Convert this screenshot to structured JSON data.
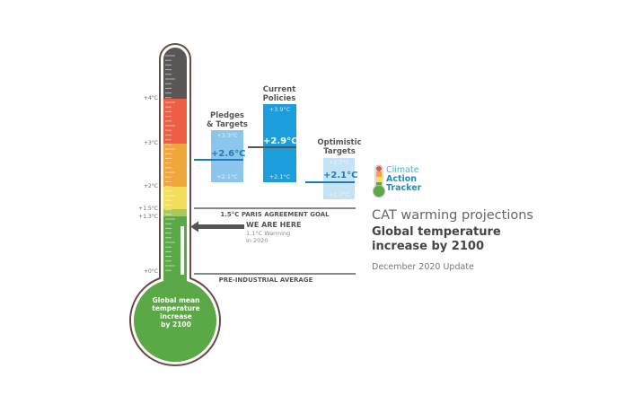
{
  "thermometer": {
    "ticks": [
      {
        "label": "+4°C",
        "value": 4.0
      },
      {
        "label": "+3°C",
        "value": 3.0
      },
      {
        "label": "+2°C",
        "value": 2.0
      },
      {
        "label": "+1.5°C",
        "value": 1.5
      },
      {
        "label": "+1.3°C",
        "value": 1.3
      },
      {
        "label": "+0°C",
        "value": 0.0
      }
    ],
    "bulb_label": [
      "Global mean",
      "temperature",
      "increase",
      "by 2100"
    ],
    "current_warming": 1.1,
    "colors": {
      "outline": "#6b4a44",
      "dark": "#5a5656",
      "red": "#ee5d45",
      "orange": "#f1a63c",
      "yellow": "#f3df5a",
      "lightgreen": "#a6cb5c",
      "green": "#5aa846"
    }
  },
  "scenarios": [
    {
      "header": [
        "Pledges",
        "& Targets"
      ],
      "high": "+3.3°C",
      "mid": "+2.6°C",
      "low": "+2.1°C",
      "color": "#8cc6ec",
      "mid_color": "#1a7fb6"
    },
    {
      "header": [
        "Current",
        "Policies"
      ],
      "high": "+3.9°C",
      "mid": "+2.9°C",
      "low": "+2.1°C",
      "color": "#1b9edb",
      "mid_color": "#ffffff"
    },
    {
      "header": [
        "Optimistic",
        "Targets"
      ],
      "high": "+2.7°C",
      "mid": "+2.1°C",
      "low": "+1.7°C",
      "color": "#c6e2f5",
      "mid_color": "#1a7fb6"
    }
  ],
  "goals": {
    "paris": "1.5°C PARIS AGREEMENT GOAL",
    "pre_industrial": "PRE-INDUSTRIAL AVERAGE"
  },
  "we_are_here": {
    "title": "WE ARE HERE",
    "line1": "1.1°C Warming",
    "line2": "in 2020"
  },
  "logo": {
    "line1": "Climate",
    "line2": "Action",
    "line3": "Tracker",
    "color1": "#41b6e6",
    "color2": "#1a8fc9"
  },
  "title": {
    "line1": "CAT warming projections",
    "line2a": "Global temperature",
    "line2b": "increase by 2100",
    "line3": "December 2020 Update"
  }
}
